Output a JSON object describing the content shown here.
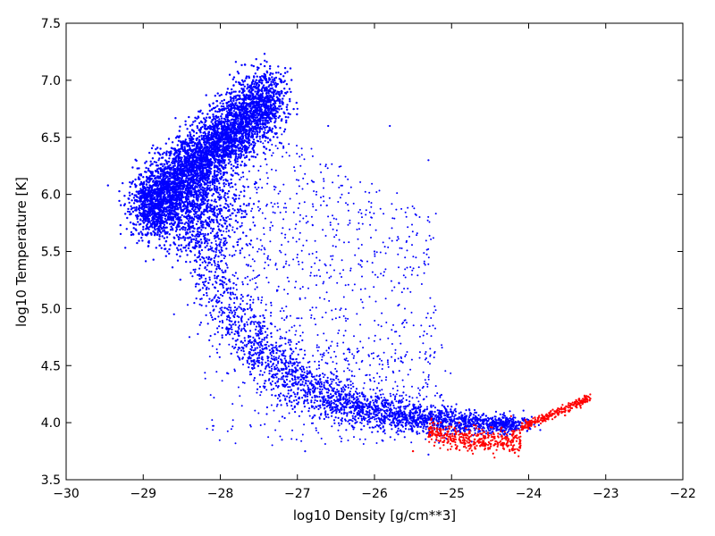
{
  "chart_data": {
    "type": "scatter",
    "xlabel": "log10 Density [g/cm**3]",
    "ylabel": "log10 Temperature [K]",
    "xlim": [
      -30,
      -22
    ],
    "ylim": [
      3.5,
      7.5
    ],
    "xticks": [
      -30,
      -29,
      -28,
      -27,
      -26,
      -25,
      -24,
      -23,
      -22
    ],
    "xtick_labels": [
      "−30",
      "−29",
      "−28",
      "−27",
      "−26",
      "−25",
      "−24",
      "−23",
      "−22"
    ],
    "yticks": [
      3.5,
      4.0,
      4.5,
      5.0,
      5.5,
      6.0,
      6.5,
      7.0,
      7.5
    ],
    "ytick_labels": [
      "3.5",
      "4.0",
      "4.5",
      "5.0",
      "5.5",
      "6.0",
      "6.5",
      "7.0",
      "7.5"
    ],
    "grid": false,
    "legend": "none",
    "series": [
      {
        "color": "#0000ff",
        "description_regions": [
          {
            "region": "dense-hot-cloud",
            "x_range": [
              -29.2,
              -27.0
            ],
            "y_range": [
              5.5,
              7.05
            ]
          },
          {
            "region": "cooling-tail",
            "x_range": [
              -28.5,
              -25.5
            ],
            "y_range": [
              4.0,
              5.6
            ]
          },
          {
            "region": "low-temperature-ridge",
            "x_range": [
              -26.5,
              -24.0
            ],
            "y_range": [
              3.7,
              4.3
            ]
          },
          {
            "region": "scattered-outliers",
            "x_range": [
              -27.5,
              -25.5
            ],
            "y_range": [
              4.5,
              6.6
            ]
          }
        ],
        "points": [
          {
            "x": -29.2,
            "y": 5.85
          },
          {
            "x": -29.1,
            "y": 5.95
          },
          {
            "x": -29.0,
            "y": 6.05
          },
          {
            "x": -28.9,
            "y": 6.2
          },
          {
            "x": -28.8,
            "y": 6.3
          },
          {
            "x": -28.6,
            "y": 6.35
          },
          {
            "x": -28.4,
            "y": 6.45
          },
          {
            "x": -28.2,
            "y": 6.6
          },
          {
            "x": -28.0,
            "y": 6.8
          },
          {
            "x": -27.8,
            "y": 6.9
          },
          {
            "x": -27.6,
            "y": 6.95
          },
          {
            "x": -27.4,
            "y": 7.0
          },
          {
            "x": -27.2,
            "y": 6.9
          },
          {
            "x": -27.0,
            "y": 6.75
          },
          {
            "x": -26.6,
            "y": 6.6
          },
          {
            "x": -25.8,
            "y": 6.6
          },
          {
            "x": -25.3,
            "y": 6.3
          },
          {
            "x": -28.5,
            "y": 5.5
          },
          {
            "x": -28.2,
            "y": 5.2
          },
          {
            "x": -28.0,
            "y": 5.0
          },
          {
            "x": -27.8,
            "y": 4.8
          },
          {
            "x": -27.5,
            "y": 4.7
          },
          {
            "x": -27.2,
            "y": 4.6
          },
          {
            "x": -26.8,
            "y": 4.4
          },
          {
            "x": -26.5,
            "y": 4.25
          },
          {
            "x": -26.0,
            "y": 4.15
          },
          {
            "x": -25.5,
            "y": 4.08
          },
          {
            "x": -25.0,
            "y": 4.02
          },
          {
            "x": -24.5,
            "y": 3.98
          },
          {
            "x": -24.1,
            "y": 3.96
          },
          {
            "x": -25.3,
            "y": 3.72
          },
          {
            "x": -26.9,
            "y": 3.75
          },
          {
            "x": -27.2,
            "y": 3.85
          },
          {
            "x": -28.4,
            "y": 4.75
          },
          {
            "x": -28.6,
            "y": 4.95
          },
          {
            "x": -26.0,
            "y": 5.5
          }
        ]
      },
      {
        "color": "#ff0000",
        "description_regions": [
          {
            "region": "cold-dense-branch",
            "x_range": [
              -25.6,
              -23.2
            ],
            "y_range": [
              3.72,
              4.22
            ]
          }
        ],
        "points": [
          {
            "x": -25.2,
            "y": 3.92
          },
          {
            "x": -24.9,
            "y": 3.85
          },
          {
            "x": -24.6,
            "y": 3.8
          },
          {
            "x": -24.4,
            "y": 3.82
          },
          {
            "x": -24.2,
            "y": 3.9
          },
          {
            "x": -24.0,
            "y": 3.98
          },
          {
            "x": -23.8,
            "y": 4.05
          },
          {
            "x": -23.6,
            "y": 4.12
          },
          {
            "x": -23.4,
            "y": 4.18
          },
          {
            "x": -23.2,
            "y": 4.21
          },
          {
            "x": -25.5,
            "y": 3.75
          }
        ]
      }
    ]
  }
}
